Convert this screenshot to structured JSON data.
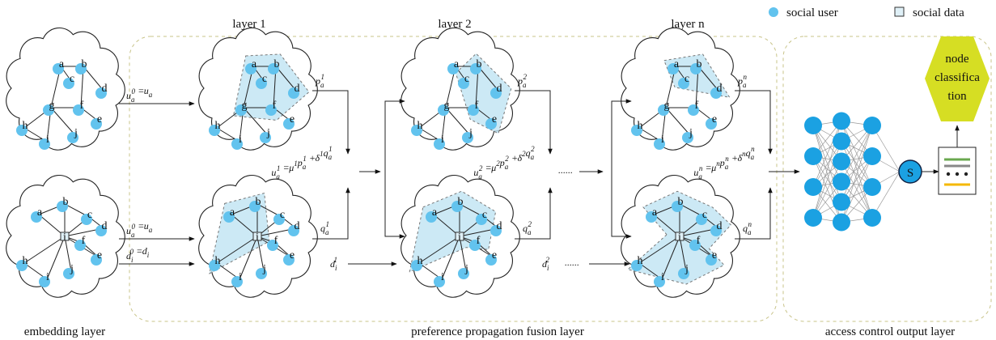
{
  "legend": {
    "user": "social user",
    "data": "social data"
  },
  "layers": [
    "layer 1",
    "layer 2",
    "layer n"
  ],
  "sections": [
    "embedding layer",
    "preference propagation fusion layer",
    "access control output layer"
  ],
  "graphs": [
    {
      "nodes": [
        "a",
        "b",
        "c",
        "d",
        "e",
        "f",
        "g",
        "h",
        "i",
        "j"
      ]
    },
    {
      "nodes": [
        "a",
        "b",
        "c",
        "d",
        "e",
        "f",
        "g",
        "h",
        "i",
        "j"
      ],
      "data_node": "i"
    },
    {
      "nodes": [
        "a",
        "b",
        "c",
        "d",
        "e",
        "f",
        "g",
        "h",
        "i",
        "j"
      ]
    },
    {
      "nodes": [
        "a",
        "b",
        "c",
        "d",
        "e",
        "f",
        "g",
        "h",
        "i",
        "j"
      ],
      "data_node": "i"
    },
    {
      "nodes": [
        "a",
        "b",
        "c",
        "d",
        "e",
        "f",
        "g",
        "h",
        "i",
        "j"
      ]
    },
    {
      "nodes": [
        "a",
        "b",
        "c",
        "d",
        "e",
        "f",
        "g",
        "h",
        "i",
        "j"
      ],
      "data_node": "i"
    },
    {
      "nodes": [
        "a",
        "b",
        "c",
        "d",
        "e",
        "f",
        "g",
        "h",
        "i",
        "j"
      ]
    },
    {
      "nodes": [
        "a",
        "b",
        "c",
        "d",
        "e",
        "f",
        "g",
        "h",
        "i",
        "j"
      ],
      "data_node": "i"
    }
  ],
  "formulas": {
    "init_u_top": [
      {
        "b": "u",
        "sub": "a",
        "sup": "0"
      },
      "=",
      {
        "b": "u",
        "sub": "a"
      }
    ],
    "init_u_bottom": [
      {
        "b": "u",
        "sub": "a",
        "sup": "0"
      },
      "=",
      {
        "b": "u",
        "sub": "a"
      }
    ],
    "init_d": [
      {
        "b": "d",
        "sub": "i",
        "sup": "0"
      },
      "=",
      {
        "b": "d",
        "sub": "i"
      }
    ],
    "p": [
      [
        {
          "b": "p",
          "sub": "a",
          "sup": "1"
        }
      ],
      [
        {
          "b": "p",
          "sub": "a",
          "sup": "2"
        }
      ],
      [
        {
          "b": "p",
          "sub": "a",
          "sup": "n"
        }
      ]
    ],
    "q": [
      [
        {
          "b": "q",
          "sub": "a",
          "sup": "1"
        }
      ],
      [
        {
          "b": "q",
          "sub": "a",
          "sup": "2"
        }
      ],
      [
        {
          "b": "q",
          "sub": "a",
          "sup": "n"
        }
      ]
    ],
    "fusion": [
      [
        {
          "b": "u",
          "sub": "a",
          "sup": "1"
        },
        "=",
        {
          "b": "μ",
          "sup": "1"
        },
        {
          "b": "p",
          "sub": "a",
          "sup": "1"
        },
        "+",
        {
          "b": "δ",
          "sup": "1"
        },
        {
          "b": "q",
          "sub": "a",
          "sup": "1"
        }
      ],
      [
        {
          "b": "u",
          "sub": "a",
          "sup": "2"
        },
        "=",
        {
          "b": "μ",
          "sup": "2"
        },
        {
          "b": "p",
          "sub": "a",
          "sup": "2"
        },
        "+",
        {
          "b": "δ",
          "sup": "2"
        },
        {
          "b": "q",
          "sub": "a",
          "sup": "2"
        }
      ],
      [
        {
          "b": "u",
          "sub": "a",
          "sup": "n"
        },
        "=",
        {
          "b": "μ",
          "sup": "n"
        },
        {
          "b": "p",
          "sub": "a",
          "sup": "n"
        },
        "+",
        {
          "b": "δ",
          "sup": "n"
        },
        {
          "b": "q",
          "sub": "a",
          "sup": "n"
        }
      ]
    ],
    "d": [
      [
        {
          "b": "d",
          "sub": "i",
          "sup": "1"
        }
      ],
      [
        {
          "b": "d",
          "sub": "i",
          "sup": "2"
        }
      ]
    ]
  },
  "ellipses": [
    "......",
    "......"
  ],
  "sigma": "S",
  "output": [
    "node",
    "classifica",
    "tion"
  ]
}
